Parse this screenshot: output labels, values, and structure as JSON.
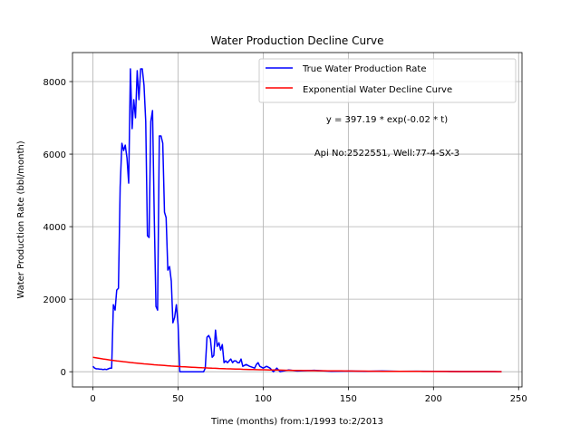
{
  "chart_data": {
    "type": "line",
    "title": "Water Production Decline Curve",
    "xlabel": "Time (months) from:1/1993 to:2/2013",
    "ylabel": "Water Production Rate (bbl/month)",
    "xlim": [
      -12,
      252
    ],
    "ylim": [
      -420,
      8800
    ],
    "xticks": [
      0,
      50,
      100,
      150,
      200,
      250
    ],
    "yticks": [
      0,
      2000,
      4000,
      6000,
      8000
    ],
    "xtick_labels": [
      "0",
      "50",
      "100",
      "150",
      "200",
      "250"
    ],
    "ytick_labels": [
      "0",
      "2000",
      "4000",
      "6000",
      "8000"
    ],
    "grid": true,
    "legend_position": "top-right",
    "annotations": [
      "y = 397.19 * exp(-0.02 * t)",
      "Api No:2522551, Well:77-4-SX-3"
    ],
    "series": [
      {
        "name": "True Water Production Rate",
        "color": "#0000ff",
        "x": [
          0,
          1,
          2,
          3,
          4,
          5,
          6,
          7,
          8,
          9,
          10,
          11,
          12,
          13,
          14,
          15,
          16,
          17,
          18,
          19,
          20,
          21,
          22,
          23,
          24,
          25,
          26,
          27,
          28,
          29,
          30,
          31,
          32,
          33,
          34,
          35,
          36,
          37,
          38,
          39,
          40,
          41,
          42,
          43,
          44,
          45,
          46,
          47,
          48,
          49,
          50,
          51,
          52,
          53,
          55,
          60,
          65,
          66,
          67,
          68,
          69,
          70,
          71,
          72,
          73,
          74,
          75,
          76,
          77,
          78,
          79,
          80,
          81,
          82,
          83,
          84,
          85,
          86,
          87,
          88,
          90,
          92,
          95,
          96,
          97,
          98,
          100,
          102,
          104,
          105,
          106,
          108,
          110,
          115,
          120,
          125,
          130,
          140,
          150,
          160,
          170,
          180,
          190,
          200,
          210,
          220,
          230,
          240
        ],
        "y": [
          150,
          100,
          80,
          80,
          70,
          70,
          60,
          70,
          60,
          80,
          100,
          100,
          1850,
          1700,
          2250,
          2300,
          5100,
          6300,
          6100,
          6250,
          5900,
          5200,
          8350,
          6700,
          7500,
          7000,
          8300,
          7500,
          8350,
          8350,
          7900,
          6900,
          3750,
          3700,
          6900,
          7200,
          4300,
          1800,
          1700,
          6500,
          6500,
          6300,
          4400,
          4250,
          2800,
          2900,
          2500,
          1350,
          1500,
          1850,
          1300,
          0,
          0,
          0,
          0,
          0,
          0,
          100,
          950,
          1000,
          900,
          400,
          450,
          1150,
          700,
          800,
          600,
          750,
          250,
          300,
          250,
          300,
          350,
          250,
          300,
          300,
          250,
          250,
          350,
          150,
          200,
          150,
          100,
          200,
          250,
          150,
          100,
          150,
          100,
          50,
          0,
          100,
          0,
          50,
          20,
          30,
          40,
          10,
          20,
          10,
          20,
          10,
          15,
          10,
          8,
          5,
          5,
          3
        ]
      },
      {
        "name": "Exponential Water Decline Curve",
        "color": "#ff0000",
        "a": 397.19,
        "b": 0.02,
        "x_range": [
          0,
          240
        ]
      }
    ]
  }
}
